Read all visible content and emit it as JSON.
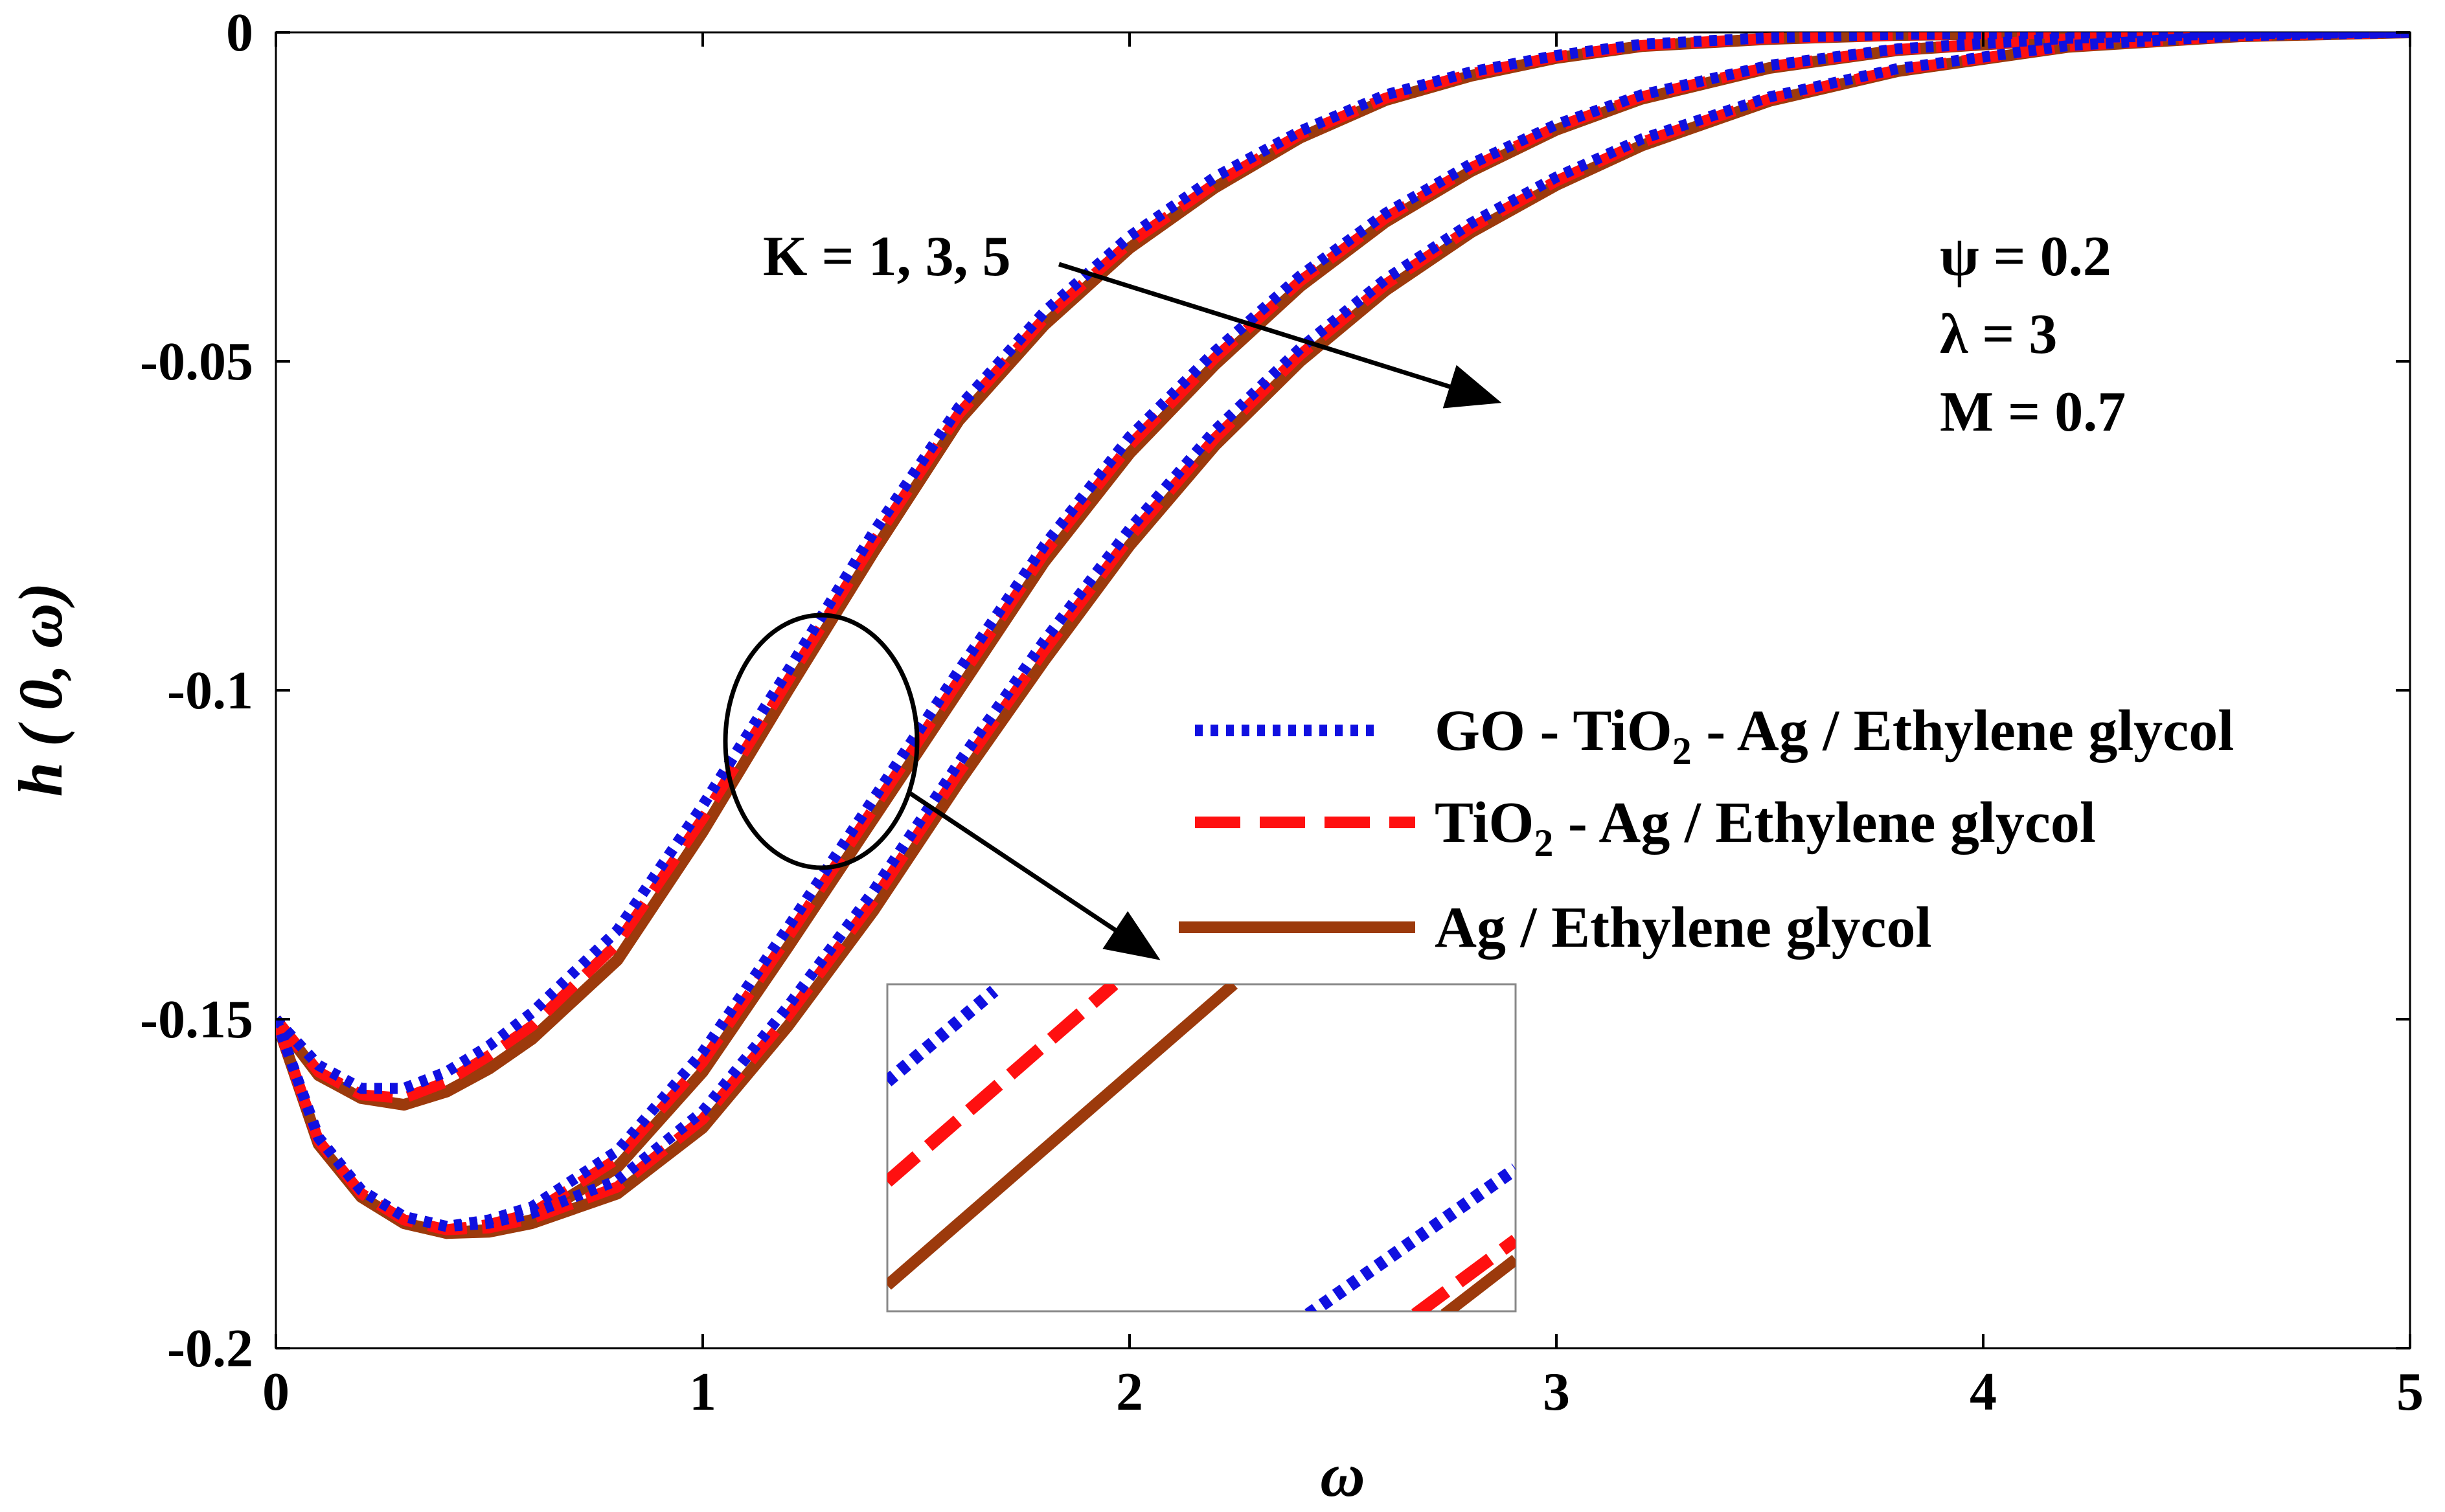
{
  "chart_data": {
    "type": "line",
    "xlabel": "ω",
    "ylabel": "h ( 0, ω)",
    "xlim": [
      0,
      5
    ],
    "ylim": [
      -0.2,
      0
    ],
    "xticks": [
      0,
      1,
      2,
      3,
      4,
      5
    ],
    "xtick_labels": [
      "0",
      "1",
      "2",
      "3",
      "4",
      "5"
    ],
    "yticks": [
      0,
      -0.05,
      -0.1,
      -0.15,
      -0.2
    ],
    "ytick_labels": [
      "0",
      "-0.05",
      "-0.1",
      "-0.15",
      "-0.2"
    ],
    "grid": false,
    "legend_position": "center-right",
    "legend": [
      {
        "label_main": "GO - TiO",
        "label_sub": "2",
        "label_rest": " - Ag / Ethylene glycol",
        "color": "#1010e0",
        "style": "dotted"
      },
      {
        "label_main": "TiO",
        "label_sub": "2",
        "label_rest": " - Ag / Ethylene glycol",
        "color": "#ff1010",
        "style": "dashed"
      },
      {
        "label_main": "Ag / Ethylene glycol",
        "label_sub": "",
        "label_rest": "",
        "color": "#9c3a0c",
        "style": "solid"
      }
    ],
    "annotations": {
      "k_label": "K = 1, 3, 5",
      "params": [
        "ψ = 0.2",
        "λ = 3",
        "M = 0.7"
      ]
    },
    "x": [
      0,
      0.1,
      0.2,
      0.3,
      0.4,
      0.5,
      0.6,
      0.8,
      1.0,
      1.2,
      1.4,
      1.6,
      1.8,
      2.0,
      2.2,
      2.4,
      2.6,
      2.8,
      3.0,
      3.2,
      3.5,
      3.8,
      4.2,
      4.6,
      5.0
    ],
    "series": [
      {
        "K": 1,
        "fluid": "GO - TiO2 - Ag / Ethylene glycol",
        "color": "#1010e0",
        "style": "dotted",
        "values": [
          -0.15,
          -0.157,
          -0.1605,
          -0.1605,
          -0.158,
          -0.154,
          -0.149,
          -0.1365,
          -0.1175,
          -0.097,
          -0.076,
          -0.057,
          -0.0425,
          -0.031,
          -0.022,
          -0.015,
          -0.0095,
          -0.006,
          -0.0035,
          -0.0018,
          -0.0008,
          -0.0003,
          -0.0001,
          0,
          0
        ]
      },
      {
        "K": 1,
        "fluid": "TiO2 - Ag / Ethylene glycol",
        "color": "#ff1010",
        "style": "dashed",
        "values": [
          -0.15,
          -0.158,
          -0.1615,
          -0.162,
          -0.1595,
          -0.1555,
          -0.151,
          -0.1385,
          -0.1195,
          -0.0985,
          -0.0775,
          -0.058,
          -0.0435,
          -0.032,
          -0.023,
          -0.0155,
          -0.01,
          -0.0063,
          -0.0037,
          -0.002,
          -0.0009,
          -0.0004,
          -0.0001,
          0,
          0
        ]
      },
      {
        "K": 1,
        "fluid": "Ag / Ethylene glycol",
        "color": "#9c3a0c",
        "style": "solid",
        "values": [
          -0.15,
          -0.1585,
          -0.162,
          -0.163,
          -0.161,
          -0.1575,
          -0.153,
          -0.141,
          -0.1215,
          -0.1,
          -0.079,
          -0.059,
          -0.0445,
          -0.0328,
          -0.0236,
          -0.016,
          -0.0103,
          -0.0066,
          -0.0039,
          -0.0021,
          -0.001,
          -0.0004,
          -0.0001,
          0,
          0
        ]
      },
      {
        "K": 3,
        "fluid": "GO - TiO2 - Ag / Ethylene glycol",
        "color": "#1010e0",
        "style": "dotted",
        "values": [
          -0.15,
          -0.168,
          -0.176,
          -0.18,
          -0.1815,
          -0.1805,
          -0.1785,
          -0.17,
          -0.155,
          -0.136,
          -0.1165,
          -0.097,
          -0.078,
          -0.0615,
          -0.0485,
          -0.037,
          -0.0275,
          -0.02,
          -0.014,
          -0.0095,
          -0.005,
          -0.0025,
          -0.0009,
          -0.0002,
          0
        ]
      },
      {
        "K": 3,
        "fluid": "TiO2 - Ag / Ethylene glycol",
        "color": "#ff1010",
        "style": "dashed",
        "values": [
          -0.15,
          -0.1685,
          -0.1765,
          -0.1805,
          -0.182,
          -0.1812,
          -0.1795,
          -0.1712,
          -0.1565,
          -0.1375,
          -0.118,
          -0.0985,
          -0.0792,
          -0.0628,
          -0.0495,
          -0.0378,
          -0.0282,
          -0.0206,
          -0.0144,
          -0.0098,
          -0.0052,
          -0.0026,
          -0.001,
          -0.0002,
          0
        ]
      },
      {
        "K": 3,
        "fluid": "Ag / Ethylene glycol",
        "color": "#9c3a0c",
        "style": "solid",
        "values": [
          -0.15,
          -0.169,
          -0.177,
          -0.181,
          -0.1825,
          -0.182,
          -0.1805,
          -0.1725,
          -0.158,
          -0.139,
          -0.1195,
          -0.1,
          -0.0805,
          -0.064,
          -0.0505,
          -0.0386,
          -0.0288,
          -0.0211,
          -0.0148,
          -0.0101,
          -0.0054,
          -0.0027,
          -0.001,
          -0.0002,
          0
        ]
      },
      {
        "K": 5,
        "fluid": "GO - TiO2 - Ag / Ethylene glycol",
        "color": "#1010e0",
        "style": "dotted",
        "values": [
          -0.15,
          -0.168,
          -0.176,
          -0.18,
          -0.1815,
          -0.181,
          -0.1795,
          -0.1745,
          -0.164,
          -0.148,
          -0.1305,
          -0.111,
          -0.0925,
          -0.0755,
          -0.0605,
          -0.048,
          -0.0375,
          -0.029,
          -0.022,
          -0.0162,
          -0.0098,
          -0.0055,
          -0.002,
          -0.0005,
          0
        ]
      },
      {
        "K": 5,
        "fluid": "TiO2 - Ag / Ethylene glycol",
        "color": "#ff1010",
        "style": "dashed",
        "values": [
          -0.15,
          -0.1685,
          -0.1765,
          -0.1805,
          -0.182,
          -0.1817,
          -0.1803,
          -0.1755,
          -0.1652,
          -0.1495,
          -0.132,
          -0.1125,
          -0.094,
          -0.0768,
          -0.0617,
          -0.049,
          -0.0383,
          -0.0297,
          -0.0226,
          -0.0167,
          -0.0101,
          -0.0057,
          -0.0021,
          -0.0005,
          0
        ]
      },
      {
        "K": 5,
        "fluid": "Ag / Ethylene glycol",
        "color": "#9c3a0c",
        "style": "solid",
        "values": [
          -0.15,
          -0.169,
          -0.177,
          -0.181,
          -0.1825,
          -0.1823,
          -0.181,
          -0.1765,
          -0.1665,
          -0.151,
          -0.1335,
          -0.114,
          -0.0955,
          -0.078,
          -0.0628,
          -0.05,
          -0.0392,
          -0.0304,
          -0.0232,
          -0.0172,
          -0.0104,
          -0.0059,
          -0.0022,
          -0.0006,
          0
        ]
      }
    ]
  }
}
